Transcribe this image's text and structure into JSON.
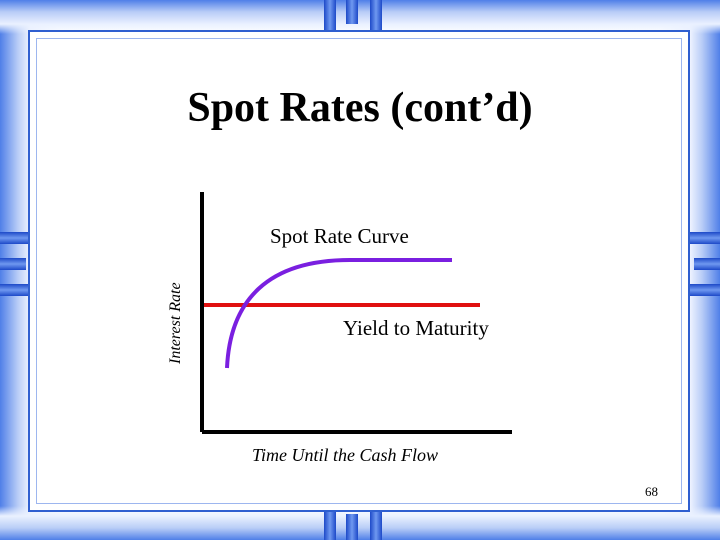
{
  "slide": {
    "title": "Spot Rates (cont’d)",
    "page_number": "68"
  },
  "diagram": {
    "y_axis_label": "Interest Rate",
    "x_axis_label": "Time Until the Cash Flow",
    "curve_label": "Spot Rate Curve",
    "line_label": "Yield to Maturity",
    "colors": {
      "spot_curve": "#7a1fe0",
      "ytm_line": "#e01010",
      "axes": "#000000",
      "frame": "#2f5fd0"
    }
  }
}
